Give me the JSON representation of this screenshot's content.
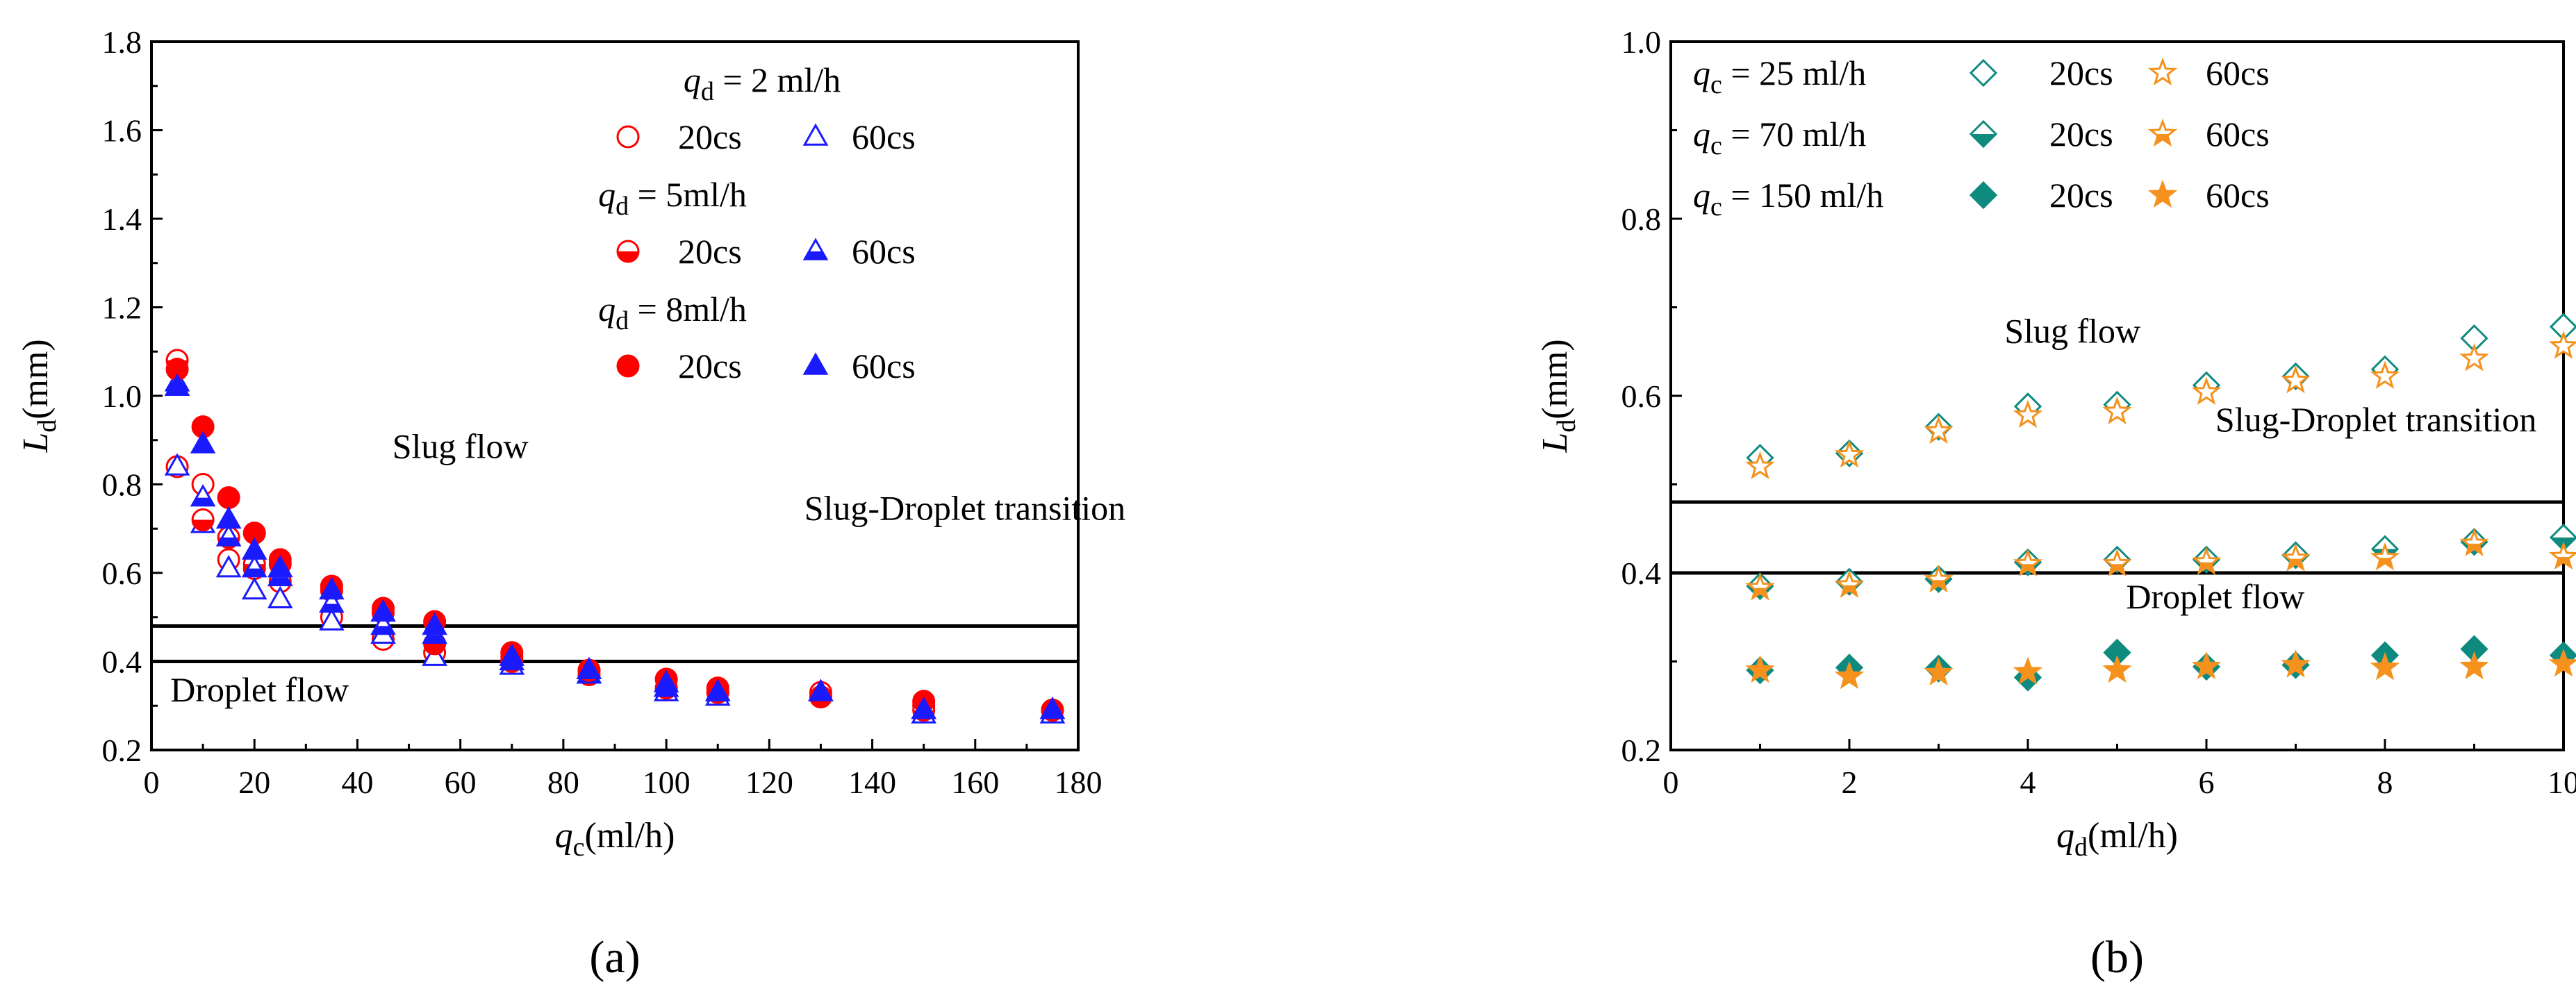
{
  "colors": {
    "red": "#ff0000",
    "blue": "#1a1aff",
    "teal": "#0e8a7e",
    "orange": "#f5921e",
    "black": "#000000"
  },
  "chart_data": [
    {
      "type": "scatter",
      "panel_label": "(a)",
      "xlabel": {
        "var": "q",
        "sub": "c",
        "unit": "(ml/h)"
      },
      "ylabel": {
        "var": "L",
        "sub": "d",
        "unit": "(mm)"
      },
      "xlim": [
        0,
        180
      ],
      "ylim": [
        0.2,
        1.8
      ],
      "xticks": [
        0,
        20,
        40,
        60,
        80,
        100,
        120,
        140,
        160,
        180
      ],
      "yticks": [
        0.2,
        0.4,
        0.6,
        0.8,
        1.0,
        1.2,
        1.4,
        1.6,
        1.8
      ],
      "ytick_labels": [
        "0.2",
        "0.4",
        "0.6",
        "0.8",
        "1.0",
        "1.2",
        "1.4",
        "1.6",
        "1.8"
      ],
      "hlines": [
        0.4,
        0.48
      ],
      "region_labels": [
        {
          "text": "Slug flow",
          "x": 60,
          "y": 0.86
        },
        {
          "text": "Slug-Droplet transition",
          "x": 158,
          "y": 0.72
        },
        {
          "text": "Droplet flow",
          "x": 21,
          "y": 0.31
        }
      ],
      "legend_groups": [
        {
          "title": {
            "var": "q",
            "sub": "d",
            "text": " = 2 ml/h"
          },
          "series_labels": [
            "20cs",
            "60cs"
          ]
        },
        {
          "title": {
            "var": "q",
            "sub": "d",
            "text": " = 5ml/h"
          },
          "series_labels": [
            "20cs",
            "60cs"
          ]
        },
        {
          "title": {
            "var": "q",
            "sub": "d",
            "text": " = 8ml/h"
          },
          "series_labels": [
            "20cs",
            "60cs"
          ]
        }
      ],
      "series": [
        {
          "name": "qd = 2 ml/h, 20cs",
          "marker": "circle",
          "fill": "none",
          "color": "red",
          "x": [
            5,
            10,
            15,
            20,
            25,
            35,
            45,
            55,
            70,
            85,
            100,
            110,
            130,
            150,
            175
          ],
          "y": [
            0.84,
            0.8,
            0.63,
            0.61,
            0.58,
            0.5,
            0.45,
            0.42,
            0.41,
            0.38,
            0.34,
            0.33,
            0.33,
            0.3,
            0.29
          ]
        },
        {
          "name": "qd = 2 ml/h, 60cs",
          "marker": "triangle",
          "fill": "none",
          "color": "blue",
          "x": [
            5,
            10,
            15,
            20,
            25,
            35,
            45,
            55,
            70,
            85,
            100,
            110,
            130,
            150,
            175
          ],
          "y": [
            0.84,
            0.71,
            0.61,
            0.56,
            0.54,
            0.49,
            0.46,
            0.41,
            0.39,
            0.37,
            0.33,
            0.32,
            0.33,
            0.28,
            0.28
          ]
        },
        {
          "name": "qd = 5ml/h, 20cs",
          "marker": "circle",
          "fill": "half",
          "color": "red",
          "x": [
            5,
            10,
            15,
            20,
            25,
            35,
            45,
            55,
            70,
            85,
            100,
            110,
            130,
            150,
            175
          ],
          "y": [
            1.08,
            0.72,
            0.68,
            0.62,
            0.62,
            0.56,
            0.51,
            0.44,
            0.4,
            0.37,
            0.34,
            0.33,
            0.32,
            0.29,
            0.29
          ]
        },
        {
          "name": "qd = 5ml/h, 60cs",
          "marker": "triangle",
          "fill": "half",
          "color": "blue",
          "x": [
            5,
            10,
            15,
            20,
            25,
            35,
            45,
            55,
            70,
            85,
            100,
            110,
            130,
            150,
            175
          ],
          "y": [
            1.03,
            0.77,
            0.68,
            0.61,
            0.59,
            0.53,
            0.48,
            0.46,
            0.4,
            0.37,
            0.34,
            0.33,
            0.33,
            0.29,
            0.29
          ]
        },
        {
          "name": "qd = 8ml/h, 20cs",
          "marker": "circle",
          "fill": "full",
          "color": "red",
          "x": [
            5,
            10,
            15,
            20,
            25,
            35,
            45,
            55,
            70,
            85,
            100,
            110,
            130,
            150,
            175
          ],
          "y": [
            1.06,
            0.93,
            0.77,
            0.69,
            0.63,
            0.57,
            0.52,
            0.49,
            0.42,
            0.38,
            0.36,
            0.34,
            0.32,
            0.31,
            0.29
          ]
        },
        {
          "name": "qd = 8ml/h, 60cs",
          "marker": "triangle",
          "fill": "full",
          "color": "blue",
          "x": [
            5,
            10,
            15,
            20,
            25,
            35,
            45,
            55,
            70,
            85,
            100,
            110,
            130,
            150,
            175
          ],
          "y": [
            1.02,
            0.89,
            0.72,
            0.65,
            0.61,
            0.56,
            0.51,
            0.48,
            0.41,
            0.38,
            0.35,
            0.33,
            0.33,
            0.29,
            0.29
          ]
        }
      ]
    },
    {
      "type": "scatter",
      "panel_label": "(b)",
      "xlabel": {
        "var": "q",
        "sub": "d",
        "unit": "(ml/h)"
      },
      "ylabel": {
        "var": "L",
        "sub": "d",
        "unit": "(mm)"
      },
      "xlim": [
        0,
        10
      ],
      "ylim": [
        0.2,
        1.0
      ],
      "xticks": [
        0,
        2,
        4,
        6,
        8,
        10
      ],
      "yticks": [
        0.2,
        0.4,
        0.6,
        0.8,
        1.0
      ],
      "ytick_labels": [
        "0.2",
        "0.4",
        "0.6",
        "0.8",
        "1.0"
      ],
      "hlines": [
        0.4,
        0.48
      ],
      "region_labels": [
        {
          "text": "Slug flow",
          "x": 4.5,
          "y": 0.66
        },
        {
          "text": "Slug-Droplet transition",
          "x": 7.9,
          "y": 0.56
        },
        {
          "text": "Droplet flow",
          "x": 6.1,
          "y": 0.36
        }
      ],
      "legend_groups": [
        {
          "title": {
            "var": "q",
            "sub": "c",
            "text": " = 25 ml/h"
          },
          "series_labels": [
            "20cs",
            "60cs"
          ]
        },
        {
          "title": {
            "var": "q",
            "sub": "c",
            "text": " = 70 ml/h"
          },
          "series_labels": [
            "20cs",
            "60cs"
          ]
        },
        {
          "title": {
            "var": "q",
            "sub": "c",
            "text": " = 150 ml/h"
          },
          "series_labels": [
            "20cs",
            "60cs"
          ]
        }
      ],
      "series": [
        {
          "name": "qc = 25 ml/h, 20cs",
          "marker": "diamond",
          "fill": "none",
          "color": "teal",
          "x": [
            1,
            2,
            3,
            4,
            5,
            6,
            7,
            8,
            9,
            10
          ],
          "y": [
            0.53,
            0.535,
            0.565,
            0.588,
            0.59,
            0.612,
            0.622,
            0.63,
            0.665,
            0.678
          ]
        },
        {
          "name": "qc = 25 ml/h, 60cs",
          "marker": "star",
          "fill": "none",
          "color": "orange",
          "x": [
            1,
            2,
            3,
            4,
            5,
            6,
            7,
            8,
            9,
            10
          ],
          "y": [
            0.52,
            0.533,
            0.56,
            0.578,
            0.582,
            0.604,
            0.617,
            0.622,
            0.642,
            0.656
          ]
        },
        {
          "name": "qc = 70 ml/h, 20cs",
          "marker": "diamond",
          "fill": "half",
          "color": "teal",
          "x": [
            1,
            2,
            3,
            4,
            5,
            6,
            7,
            8,
            9,
            10
          ],
          "y": [
            0.385,
            0.39,
            0.393,
            0.412,
            0.415,
            0.415,
            0.42,
            0.427,
            0.435,
            0.44
          ]
        },
        {
          "name": "qc = 70 ml/h, 60cs",
          "marker": "star",
          "fill": "half",
          "color": "orange",
          "x": [
            1,
            2,
            3,
            4,
            5,
            6,
            7,
            8,
            9,
            10
          ],
          "y": [
            0.383,
            0.386,
            0.392,
            0.41,
            0.41,
            0.412,
            0.416,
            0.417,
            0.433,
            0.418
          ]
        },
        {
          "name": "qc = 150 ml/h, 20cs",
          "marker": "diamond",
          "fill": "full",
          "color": "teal",
          "x": [
            1,
            2,
            3,
            4,
            5,
            6,
            7,
            8,
            9,
            10
          ],
          "y": [
            0.29,
            0.293,
            0.292,
            0.282,
            0.31,
            0.294,
            0.296,
            0.307,
            0.314,
            0.307
          ]
        },
        {
          "name": "qc = 150 ml/h, 60cs",
          "marker": "star",
          "fill": "full",
          "color": "orange",
          "x": [
            1,
            2,
            3,
            4,
            5,
            6,
            7,
            8,
            9,
            10
          ],
          "y": [
            0.29,
            0.283,
            0.287,
            0.288,
            0.29,
            0.294,
            0.296,
            0.293,
            0.294,
            0.297
          ]
        }
      ]
    }
  ]
}
